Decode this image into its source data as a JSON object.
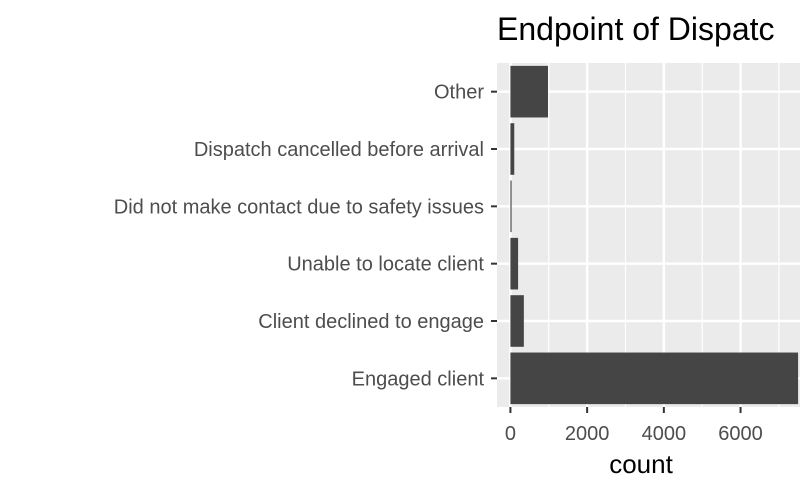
{
  "chart_data": {
    "type": "bar",
    "orientation": "horizontal",
    "title": "Endpoint of Dispatc",
    "xlabel": "count",
    "ylabel": "",
    "categories": [
      "Engaged client",
      "Client declined to engage",
      "Unable to locate client",
      "Did not make contact due to safety issues",
      "Dispatch cancelled before arrival",
      "Other"
    ],
    "values": [
      7500,
      350,
      200,
      30,
      100,
      980
    ],
    "xlim": [
      -350,
      7550
    ],
    "xticks": [
      "0",
      "2000",
      "4000",
      "6000"
    ],
    "xtick_values": [
      0,
      2000,
      4000,
      6000
    ],
    "grid": true,
    "colors": {
      "panel_background": "#ebebeb",
      "grid": "#ffffff",
      "bar": "#454545",
      "text": "#4d4d4d"
    }
  }
}
